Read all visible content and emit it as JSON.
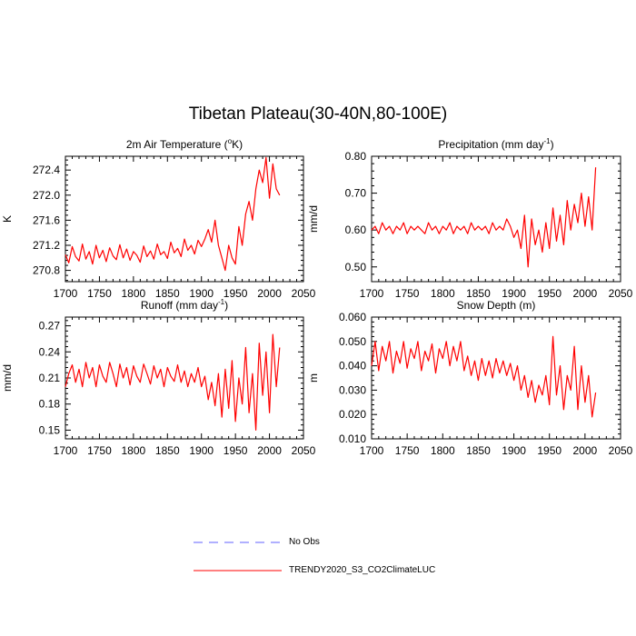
{
  "figure": {
    "title": "Tibetan Plateau(30-40N,80-100E)"
  },
  "legend": {
    "entries": [
      {
        "label": "No Obs",
        "color": "#6060ff",
        "style": "dashed"
      },
      {
        "label": "TRENDY2020_S3_CO2ClimateLUC",
        "color": "#ff0000",
        "style": "solid"
      }
    ]
  },
  "colors": {
    "model": "#ff0000",
    "obs": "#6060ff",
    "axis": "#000000"
  },
  "chart_data": [
    {
      "type": "line",
      "title": "2m Air Temperature (",
      "title_super": "o",
      "title_tail": "K)",
      "xlabel": "",
      "ylabel": "K",
      "xlim": [
        1700,
        2050
      ],
      "ylim": [
        270.62,
        272.62
      ],
      "xticks": [
        1700,
        1750,
        1800,
        1850,
        1900,
        1950,
        2000,
        2050
      ],
      "yticks": [
        270.8,
        271.2,
        271.6,
        272.0,
        272.4
      ],
      "ytick_labels": [
        "270.8",
        "271.2",
        "271.6",
        "272.0",
        "272.4"
      ],
      "series": [
        {
          "name": "TRENDY2020_S3_CO2ClimateLUC",
          "x_start": 1700,
          "x_step": 5,
          "values": [
            271.05,
            270.92,
            271.18,
            271.02,
            270.95,
            271.22,
            270.98,
            271.1,
            270.9,
            271.2,
            271.0,
            271.12,
            270.94,
            271.16,
            271.03,
            270.97,
            271.21,
            271.0,
            271.14,
            270.96,
            271.1,
            271.04,
            270.93,
            271.19,
            271.02,
            271.11,
            270.98,
            271.22,
            271.05,
            271.1,
            270.99,
            271.25,
            271.08,
            271.15,
            271.02,
            271.3,
            271.12,
            271.2,
            271.06,
            271.28,
            271.18,
            271.3,
            271.45,
            271.25,
            271.6,
            271.2,
            271.0,
            270.8,
            271.2,
            271.0,
            270.9,
            271.5,
            271.2,
            271.7,
            271.9,
            271.6,
            272.1,
            272.4,
            272.2,
            272.6,
            271.95,
            272.5,
            272.1,
            272.0
          ]
        }
      ]
    },
    {
      "type": "line",
      "title": "Precipitation (mm day",
      "title_super": "-1",
      "title_tail": ")",
      "xlabel": "",
      "ylabel": "mm/d",
      "xlim": [
        1700,
        2050
      ],
      "ylim": [
        0.46,
        0.8
      ],
      "xticks": [
        1700,
        1750,
        1800,
        1850,
        1900,
        1950,
        2000,
        2050
      ],
      "yticks": [
        0.5,
        0.6,
        0.7,
        0.8
      ],
      "ytick_labels": [
        "0.50",
        "0.60",
        "0.70",
        "0.80"
      ],
      "series": [
        {
          "name": "TRENDY2020_S3_CO2ClimateLUC",
          "x_start": 1700,
          "x_step": 5,
          "values": [
            0.6,
            0.61,
            0.59,
            0.62,
            0.6,
            0.61,
            0.59,
            0.61,
            0.6,
            0.62,
            0.59,
            0.61,
            0.6,
            0.61,
            0.6,
            0.59,
            0.62,
            0.6,
            0.61,
            0.59,
            0.61,
            0.6,
            0.62,
            0.59,
            0.61,
            0.6,
            0.61,
            0.59,
            0.62,
            0.6,
            0.61,
            0.6,
            0.61,
            0.59,
            0.62,
            0.6,
            0.61,
            0.6,
            0.63,
            0.61,
            0.58,
            0.6,
            0.55,
            0.64,
            0.5,
            0.63,
            0.56,
            0.6,
            0.54,
            0.62,
            0.55,
            0.66,
            0.57,
            0.64,
            0.56,
            0.68,
            0.6,
            0.67,
            0.62,
            0.7,
            0.61,
            0.69,
            0.6,
            0.77
          ]
        }
      ]
    },
    {
      "type": "line",
      "title": "Runoff (mm day",
      "title_super": "-1",
      "title_tail": ")",
      "xlabel": "",
      "ylabel": "mm/d",
      "xlim": [
        1700,
        2050
      ],
      "ylim": [
        0.14,
        0.28
      ],
      "xticks": [
        1700,
        1750,
        1800,
        1850,
        1900,
        1950,
        2000,
        2050
      ],
      "yticks": [
        0.15,
        0.18,
        0.21,
        0.24,
        0.27
      ],
      "ytick_labels": [
        "0.15",
        "0.18",
        "0.21",
        "0.24",
        "0.27"
      ],
      "series": [
        {
          "name": "TRENDY2020_S3_CO2ClimateLUC",
          "x_start": 1700,
          "x_step": 5,
          "values": [
            0.2,
            0.215,
            0.225,
            0.205,
            0.22,
            0.2,
            0.228,
            0.21,
            0.222,
            0.2,
            0.225,
            0.212,
            0.205,
            0.228,
            0.215,
            0.2,
            0.226,
            0.21,
            0.222,
            0.202,
            0.224,
            0.212,
            0.205,
            0.226,
            0.215,
            0.203,
            0.224,
            0.21,
            0.22,
            0.2,
            0.222,
            0.212,
            0.206,
            0.225,
            0.205,
            0.218,
            0.2,
            0.215,
            0.205,
            0.222,
            0.2,
            0.212,
            0.185,
            0.205,
            0.178,
            0.215,
            0.165,
            0.22,
            0.175,
            0.23,
            0.16,
            0.21,
            0.18,
            0.245,
            0.17,
            0.215,
            0.15,
            0.25,
            0.19,
            0.24,
            0.17,
            0.26,
            0.2,
            0.245
          ]
        }
      ]
    },
    {
      "type": "line",
      "title": "Snow Depth (m)",
      "title_super": "",
      "title_tail": "",
      "xlabel": "",
      "ylabel": "m",
      "xlim": [
        1700,
        2050
      ],
      "ylim": [
        0.01,
        0.06
      ],
      "xticks": [
        1700,
        1750,
        1800,
        1850,
        1900,
        1950,
        2000,
        2050
      ],
      "yticks": [
        0.01,
        0.02,
        0.03,
        0.04,
        0.05,
        0.06
      ],
      "ytick_labels": [
        "0.010",
        "0.020",
        "0.030",
        "0.040",
        "0.050",
        "0.060"
      ],
      "series": [
        {
          "name": "TRENDY2020_S3_CO2ClimateLUC",
          "x_start": 1700,
          "x_step": 5,
          "values": [
            0.04,
            0.05,
            0.038,
            0.048,
            0.042,
            0.05,
            0.037,
            0.046,
            0.041,
            0.05,
            0.039,
            0.047,
            0.043,
            0.05,
            0.038,
            0.046,
            0.042,
            0.049,
            0.037,
            0.047,
            0.043,
            0.05,
            0.04,
            0.048,
            0.042,
            0.05,
            0.038,
            0.044,
            0.036,
            0.042,
            0.034,
            0.043,
            0.036,
            0.042,
            0.035,
            0.043,
            0.037,
            0.042,
            0.036,
            0.041,
            0.034,
            0.04,
            0.03,
            0.036,
            0.027,
            0.034,
            0.025,
            0.032,
            0.028,
            0.036,
            0.024,
            0.052,
            0.028,
            0.04,
            0.022,
            0.036,
            0.03,
            0.048,
            0.022,
            0.04,
            0.025,
            0.036,
            0.019,
            0.029
          ]
        }
      ]
    }
  ]
}
